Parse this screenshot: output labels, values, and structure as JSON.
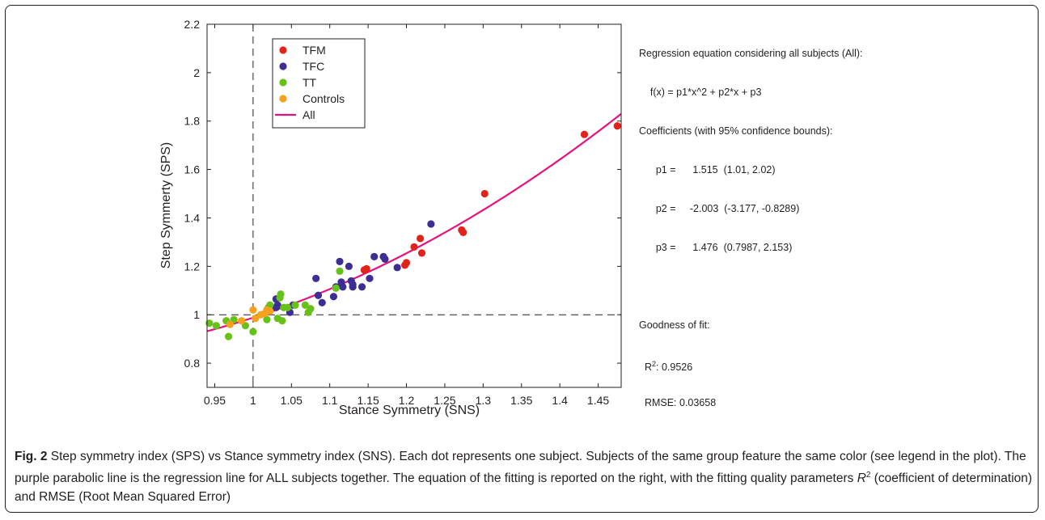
{
  "chart_data": {
    "type": "scatter",
    "xlabel": "Stance Symmetry (SNS)",
    "ylabel": "Step Symmerty (SPS)",
    "xlim": [
      0.94,
      1.48
    ],
    "ylim": [
      0.7,
      2.2
    ],
    "xticks": [
      0.95,
      1,
      1.05,
      1.1,
      1.15,
      1.2,
      1.25,
      1.3,
      1.35,
      1.4,
      1.45
    ],
    "xtick_labels": [
      "0.95",
      "1",
      "1.05",
      "1.1",
      "1.15",
      "1.2",
      "1.25",
      "1.3",
      "1.35",
      "1.4",
      "1.45"
    ],
    "yticks": [
      0.8,
      1,
      1.2,
      1.4,
      1.6,
      1.8,
      2,
      2.2
    ],
    "ytick_labels": [
      "0.8",
      "1",
      "1.2",
      "1.4",
      "1.6",
      "1.8",
      "2",
      "2.2"
    ],
    "reference_lines": {
      "x": 1,
      "y": 1,
      "style": "dashed"
    },
    "grid": false,
    "legend_placement": "top-left",
    "series": [
      {
        "name": "TFM",
        "color": "#e2231a",
        "points": [
          [
            1.145,
            1.185
          ],
          [
            1.148,
            1.19
          ],
          [
            1.198,
            1.205
          ],
          [
            1.2,
            1.215
          ],
          [
            1.21,
            1.28
          ],
          [
            1.218,
            1.315
          ],
          [
            1.22,
            1.255
          ],
          [
            1.272,
            1.35
          ],
          [
            1.274,
            1.34
          ],
          [
            1.302,
            1.5
          ],
          [
            1.432,
            1.745
          ],
          [
            1.475,
            1.78
          ]
        ]
      },
      {
        "name": "TFC",
        "color": "#3c2e92",
        "points": [
          [
            1.03,
            1.03
          ],
          [
            1.03,
            1.065
          ],
          [
            1.032,
            1.04
          ],
          [
            1.048,
            1.01
          ],
          [
            1.052,
            1.04
          ],
          [
            1.082,
            1.15
          ],
          [
            1.085,
            1.08
          ],
          [
            1.09,
            1.05
          ],
          [
            1.105,
            1.075
          ],
          [
            1.108,
            1.115
          ],
          [
            1.113,
            1.22
          ],
          [
            1.115,
            1.135
          ],
          [
            1.117,
            1.115
          ],
          [
            1.125,
            1.2
          ],
          [
            1.128,
            1.14
          ],
          [
            1.13,
            1.115
          ],
          [
            1.13,
            1.125
          ],
          [
            1.142,
            1.115
          ],
          [
            1.152,
            1.15
          ],
          [
            1.158,
            1.24
          ],
          [
            1.17,
            1.24
          ],
          [
            1.172,
            1.23
          ],
          [
            1.188,
            1.195
          ],
          [
            1.232,
            1.375
          ]
        ]
      },
      {
        "name": "TT",
        "color": "#66c219",
        "points": [
          [
            0.943,
            0.965
          ],
          [
            0.952,
            0.955
          ],
          [
            0.965,
            0.975
          ],
          [
            0.968,
            0.91
          ],
          [
            0.975,
            0.98
          ],
          [
            0.99,
            0.955
          ],
          [
            1.0,
            0.93
          ],
          [
            1.018,
            0.98
          ],
          [
            1.02,
            1.03
          ],
          [
            1.022,
            1.04
          ],
          [
            1.032,
            0.985
          ],
          [
            1.035,
            1.07
          ],
          [
            1.036,
            1.085
          ],
          [
            1.038,
            0.975
          ],
          [
            1.04,
            1.03
          ],
          [
            1.045,
            1.03
          ],
          [
            1.055,
            1.04
          ],
          [
            1.068,
            1.04
          ],
          [
            1.072,
            1.01
          ],
          [
            1.075,
            1.025
          ],
          [
            1.108,
            1.11
          ],
          [
            1.113,
            1.18
          ]
        ]
      },
      {
        "name": "Controls",
        "color": "#f4a11d",
        "points": [
          [
            0.97,
            0.96
          ],
          [
            0.985,
            0.975
          ],
          [
            1.0,
            1.02
          ],
          [
            1.003,
            0.985
          ],
          [
            1.01,
            1.0
          ],
          [
            1.015,
            1.005
          ],
          [
            1.018,
            1.02
          ],
          [
            1.022,
            1.015
          ]
        ]
      }
    ],
    "fit": {
      "name": "All",
      "color": "#e5127d",
      "p1": 1.515,
      "p2": -2.003,
      "p3": 1.476,
      "x_range": [
        0.94,
        1.48
      ]
    }
  },
  "annotation": {
    "line1": "Regression equation considering all subjects (All):",
    "line2": "    f(x) = p1*x^2 + p2*x + p3",
    "line3": "Coefficients (with 95% confidence bounds):",
    "line4": "      p1 =      1.515  (1.01, 2.02)",
    "line5": "      p2 =     -2.003  (-3.177, -0.8289)",
    "line6": "      p3 =      1.476  (0.7987, 2.153)",
    "line8": "Goodness of fit:",
    "r2_prefix": "  R",
    "r2_sup": "2",
    "r2_value": ": 0.9526",
    "rmse": "  RMSE: 0.03658"
  },
  "caption": {
    "fig_label": "Fig. 2",
    "text1": " Step symmetry index (SPS) vs Stance symmetry index (SNS). Each dot represents one subject. Subjects of the same group feature the same color (see legend in the plot). The purple parabolic line is the regression line for ALL subjects together. The equation of the fitting is reported on the right, with the fitting quality parameters ",
    "r2_italic": "R",
    "r2_sup": "2",
    "text2": " (coefficient of determination) and RMSE (Root Mean Squared Error)"
  }
}
